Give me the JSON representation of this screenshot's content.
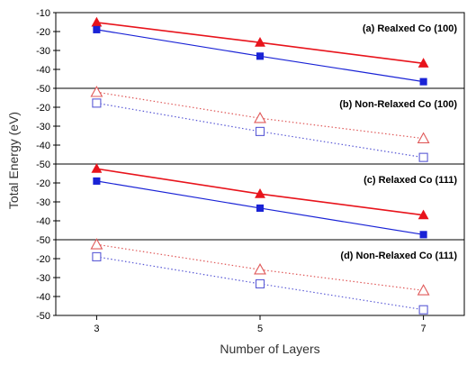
{
  "chart_data": {
    "type": "line",
    "ylabel": "Total Energy (eV)",
    "xlabel": "Number of Layers",
    "x": [
      3,
      5,
      7
    ],
    "xlim": [
      2.5,
      7.5
    ],
    "x_ticks": [
      "3",
      "5",
      "7"
    ],
    "grid": false,
    "colors": {
      "red": "#e8141c",
      "blue": "#1a23d6",
      "red_hollow": "#e05a5a",
      "blue_hollow": "#5a5ad6"
    },
    "panels": [
      {
        "title": "(a) Realxed Co (100)",
        "ylim": [
          -50,
          -10
        ],
        "y_ticks": [
          "-10",
          "-20",
          "-30",
          "-40",
          "-50"
        ],
        "style": "solid",
        "series": [
          {
            "color": "#e8141c",
            "marker": "filled-triangle",
            "values": [
              -15.2,
              -25.8,
              -36.8
            ]
          },
          {
            "color": "#1a23d6",
            "marker": "filled-square",
            "values": [
              -19.0,
              -33.0,
              -46.5
            ]
          }
        ]
      },
      {
        "title": "(b) Non-Relaxed Co (100)",
        "ylim": [
          -50,
          -10
        ],
        "y_ticks": [
          "-20",
          "-30",
          "-40",
          "-50"
        ],
        "style": "dotted",
        "series": [
          {
            "color": "#e05a5a",
            "marker": "hollow-triangle",
            "values": [
              -12.0,
              -25.8,
              -36.5
            ]
          },
          {
            "color": "#5a5ad6",
            "marker": "hollow-square",
            "values": [
              -17.8,
              -32.8,
              -46.5
            ]
          }
        ]
      },
      {
        "title": "(c) Relaxed Co (111)",
        "ylim": [
          -50,
          -10
        ],
        "y_ticks": [
          "-20",
          "-30",
          "-40",
          "-50"
        ],
        "style": "solid",
        "series": [
          {
            "color": "#e8141c",
            "marker": "filled-triangle",
            "values": [
              -12.5,
              -25.8,
              -37.0
            ]
          },
          {
            "color": "#1a23d6",
            "marker": "filled-square",
            "values": [
              -19.0,
              -33.3,
              -47.3
            ]
          }
        ]
      },
      {
        "title": "(d) Non-Relaxed Co (111)",
        "ylim": [
          -50,
          -10
        ],
        "y_ticks": [
          "-20",
          "-30",
          "-40",
          "-50"
        ],
        "style": "dotted",
        "series": [
          {
            "color": "#e05a5a",
            "marker": "hollow-triangle",
            "values": [
              -12.5,
              -25.8,
              -36.8
            ]
          },
          {
            "color": "#5a5ad6",
            "marker": "hollow-square",
            "values": [
              -19.0,
              -33.3,
              -47.0
            ]
          }
        ]
      }
    ]
  }
}
